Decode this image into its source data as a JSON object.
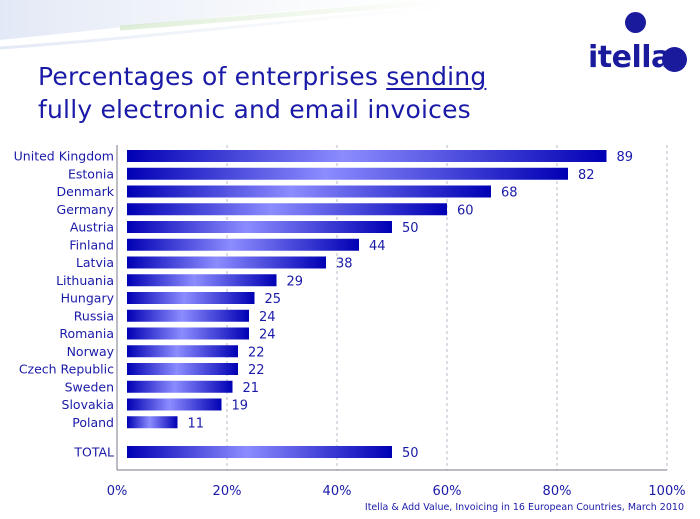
{
  "title": {
    "line1_prefix": "Percentages of enterprises ",
    "line1_underlined": "sending",
    "line2": "fully electronic and email invoices"
  },
  "logo": {
    "text": "itella"
  },
  "source": "Itella & Add Value, Invoicing in 16 European Countries, March 2010",
  "colors": {
    "bar_dark": "#0000b4",
    "bar_light": "#8c8cff",
    "text": "#1a1aa8",
    "logo": "#1a1a9c"
  },
  "chart_data": {
    "type": "bar",
    "orientation": "horizontal",
    "categories": [
      "United Kingdom",
      "Estonia",
      "Denmark",
      "Germany",
      "Austria",
      "Finland",
      "Latvia",
      "Lithuania",
      "Hungary",
      "Russia",
      "Romania",
      "Norway",
      "Czech Republic",
      "Sweden",
      "Slovakia",
      "Poland",
      "TOTAL"
    ],
    "values": [
      89,
      82,
      68,
      60,
      50,
      44,
      38,
      29,
      25,
      24,
      24,
      22,
      22,
      21,
      19,
      11,
      50
    ],
    "xlim": [
      0,
      100
    ],
    "xticks": [
      "0%",
      "20%",
      "40%",
      "60%",
      "80%",
      "100%"
    ],
    "grid": "vertical dashed"
  }
}
